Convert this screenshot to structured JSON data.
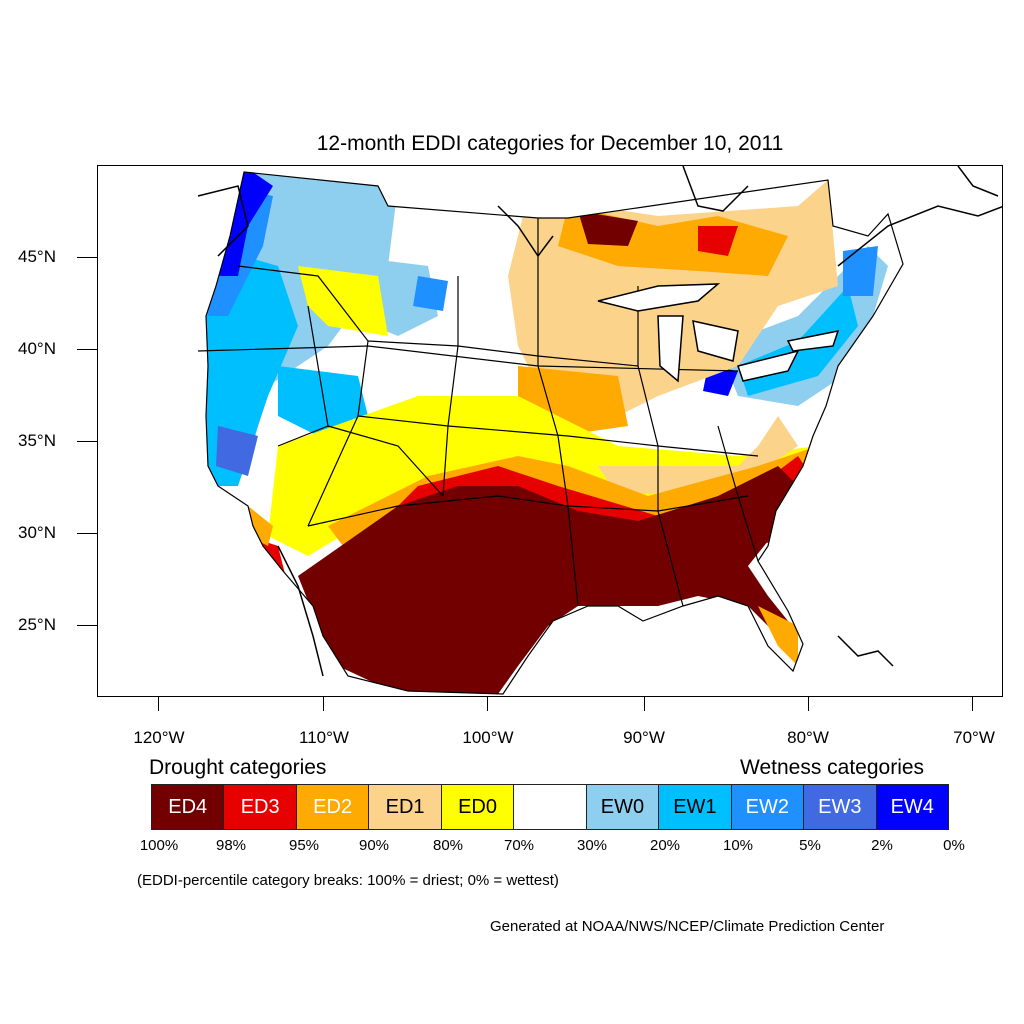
{
  "title": "12-month EDDI categories for December 10, 2011",
  "lat_labels": [
    "45°N",
    "40°N",
    "35°N",
    "30°N",
    "25°N"
  ],
  "lon_labels": [
    "120°W",
    "110°W",
    "100°W",
    "90°W",
    "80°W",
    "70°W"
  ],
  "legend": {
    "drought_heading": "Drought categories",
    "wetness_heading": "Wetness categories",
    "categories": [
      {
        "label": "ED4",
        "color": "#720000",
        "text_color": "#ffffff"
      },
      {
        "label": "ED3",
        "color": "#e60000",
        "text_color": "#ffffff"
      },
      {
        "label": "ED2",
        "color": "#ffaa00",
        "text_color": "#ffffff"
      },
      {
        "label": "ED1",
        "color": "#fcd38b",
        "text_color": "#000000"
      },
      {
        "label": "ED0",
        "color": "#ffff00",
        "text_color": "#000000"
      },
      {
        "label": "",
        "color": "#ffffff",
        "text_color": "#000000"
      },
      {
        "label": "EW0",
        "color": "#8ecff0",
        "text_color": "#000000"
      },
      {
        "label": "EW1",
        "color": "#00bfff",
        "text_color": "#000000"
      },
      {
        "label": "EW2",
        "color": "#1e90ff",
        "text_color": "#ffffff"
      },
      {
        "label": "EW3",
        "color": "#4169e1",
        "text_color": "#ffffff"
      },
      {
        "label": "EW4",
        "color": "#0000ff",
        "text_color": "#ffffff"
      }
    ],
    "breaks": [
      "100%",
      "98%",
      "95%",
      "90%",
      "80%",
      "70%",
      "30%",
      "20%",
      "10%",
      "5%",
      "2%",
      "0%"
    ]
  },
  "note": "(EDDI-percentile category breaks: 100% = driest; 0% = wettest)",
  "credit": "Generated at NOAA/NWS/NCEP/Climate Prediction Center"
}
